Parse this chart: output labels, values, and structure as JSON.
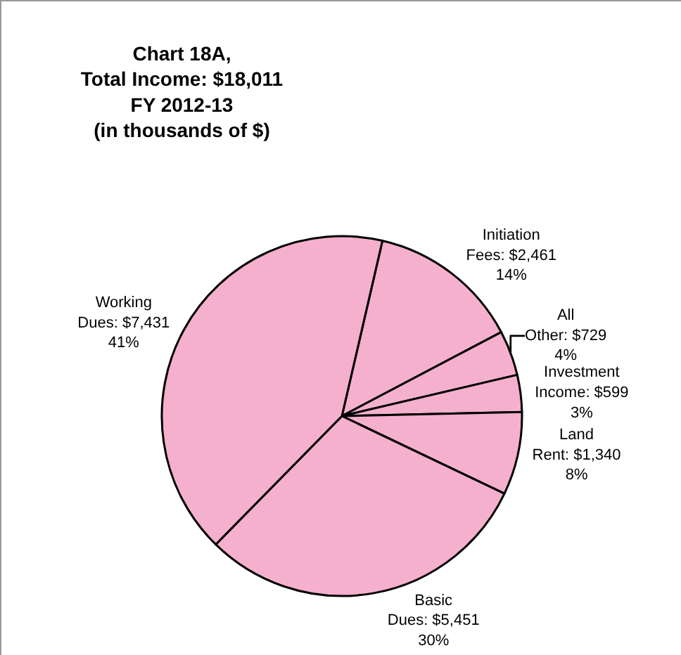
{
  "chart_data": {
    "type": "pie",
    "title": "Chart 18A,\nTotal Income: $18,011\nFY 2012-13\n(in thousands of $)",
    "categories": [
      "Initiation Fees",
      "All Other",
      "Investment Income",
      "Land Rent",
      "Basic Dues",
      "Working Dues"
    ],
    "values": [
      2461,
      729,
      599,
      1340,
      5451,
      7431
    ],
    "value_labels": [
      "$2,461\n14%",
      "$729\n4%",
      "$599\n3%",
      "$1,340\n8%",
      "$5,451\n30%",
      "$7,431\n41%"
    ],
    "colors": [
      "#f4b0cc",
      "#f4b0cc",
      "#f4b0cc",
      "#f4b0cc",
      "#f4b0cc",
      "#f4b0cc"
    ],
    "legend": false
  }
}
